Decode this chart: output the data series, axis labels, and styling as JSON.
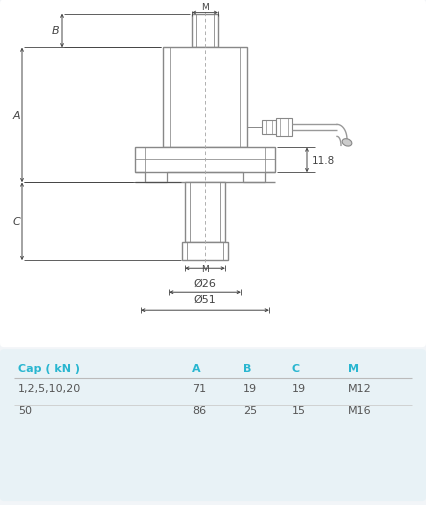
{
  "bg_color": "#f2f5f8",
  "line_color": "#888888",
  "line_color_dark": "#555555",
  "dim_color": "#444444",
  "cyan_color": "#29b6d0",
  "table_header_color": "#29b6d0",
  "dim_11_8": "11.8",
  "dim_phi26": "Ø26",
  "dim_phi51": "Ø51",
  "dim_M_top": "M",
  "dim_M_bot": "M",
  "table_headers": [
    "Cap ( kN )",
    "A",
    "B",
    "C",
    "M"
  ],
  "table_rows": [
    [
      "1,2,5,10,20",
      "71",
      "19",
      "19",
      "M12"
    ],
    [
      "50",
      "86",
      "25",
      "15",
      "M16"
    ]
  ]
}
